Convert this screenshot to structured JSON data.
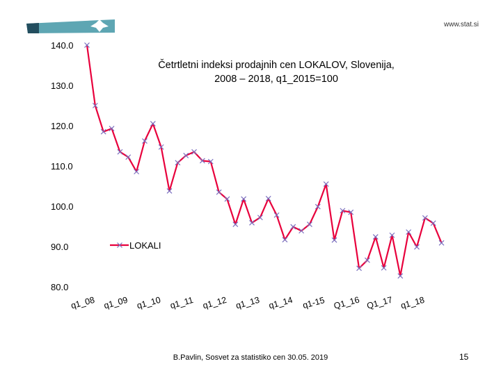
{
  "logo": {
    "site_url": "www.stat.si"
  },
  "footer": {
    "credit": "B.Pavlin, Sosvet za statistiko cen 30.05. 2019",
    "page_number": "15"
  },
  "colors": {
    "series_line": "#e8003c",
    "marker": "#7a6fbf",
    "logo_teal": "#5ea6b3",
    "logo_dark": "#234e5f"
  },
  "chart_data": {
    "type": "line",
    "title_line1": "Četrtletni indeksi prodajnih cen  LOKALOV, Slovenija,",
    "title_line2": "2008 – 2018,   q1_2015=100",
    "ylim": [
      80,
      140
    ],
    "yticks": [
      "140.0",
      "130.0",
      "120.0",
      "110.0",
      "100.0",
      "90.0",
      "80.0"
    ],
    "grid": false,
    "legend": "center",
    "xtick_labels": [
      "q1_08",
      "q1_09",
      "q1_10",
      "q1_11",
      "q1_12",
      "q1_13",
      "q1_14",
      "q1-15",
      "Q1_16",
      "Q1_17",
      "q1_18"
    ],
    "series": [
      {
        "name": "LOKALI",
        "x": [
          0,
          1,
          2,
          3,
          4,
          5,
          6,
          7,
          8,
          9,
          10,
          11,
          12,
          13,
          14,
          15,
          16,
          17,
          18,
          19,
          20,
          21,
          22,
          23,
          24,
          25,
          26,
          27,
          28,
          29,
          30,
          31,
          32,
          33,
          34,
          35,
          36,
          37,
          38,
          39,
          40,
          41,
          42,
          43
        ],
        "values": [
          140.0,
          125.0,
          118.5,
          119.3,
          113.5,
          112.2,
          108.6,
          116.2,
          120.5,
          114.7,
          103.8,
          110.8,
          112.6,
          113.5,
          111.3,
          111.1,
          103.5,
          101.8,
          95.5,
          101.8,
          95.9,
          97.2,
          101.9,
          97.8,
          91.7,
          94.9,
          93.9,
          95.5,
          99.9,
          105.5,
          91.6,
          98.9,
          98.5,
          84.6,
          86.6,
          92.4,
          84.7,
          92.8,
          82.7,
          93.6,
          89.9,
          97.1,
          95.8,
          90.9
        ]
      }
    ]
  }
}
